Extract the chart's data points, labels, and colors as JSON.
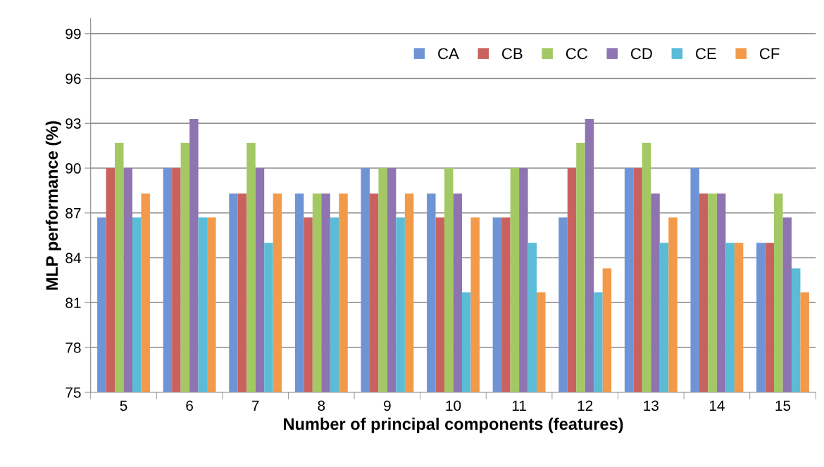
{
  "chart_data": {
    "type": "bar",
    "xlabel": "Number of principal components (features)",
    "ylabel": "MLP performance (%)",
    "categories": [
      "5",
      "6",
      "7",
      "8",
      "9",
      "10",
      "11",
      "12",
      "13",
      "14",
      "15"
    ],
    "series": [
      {
        "name": "CA",
        "color": "#6f94d6",
        "values": [
          86.7,
          90,
          88.3,
          88.3,
          90,
          88.3,
          86.7,
          86.7,
          90,
          90,
          85
        ]
      },
      {
        "name": "CB",
        "color": "#c9625f",
        "values": [
          90,
          90,
          88.3,
          86.7,
          88.3,
          86.7,
          86.7,
          90,
          90,
          88.3,
          85
        ]
      },
      {
        "name": "CC",
        "color": "#a4c964",
        "values": [
          91.7,
          91.7,
          91.7,
          88.3,
          90,
          90,
          90,
          91.7,
          91.7,
          88.3,
          88.3
        ]
      },
      {
        "name": "CD",
        "color": "#8e74b0",
        "values": [
          90,
          93.3,
          90,
          88.3,
          90,
          88.3,
          90,
          93.3,
          88.3,
          88.3,
          86.7
        ]
      },
      {
        "name": "CE",
        "color": "#5bbcd8",
        "values": [
          86.7,
          86.7,
          85,
          86.7,
          86.7,
          81.7,
          85,
          81.7,
          85,
          85,
          83.3
        ]
      },
      {
        "name": "CF",
        "color": "#f29a4a",
        "values": [
          88.3,
          86.7,
          88.3,
          88.3,
          88.3,
          86.7,
          81.7,
          83.3,
          86.7,
          85,
          81.7
        ]
      }
    ],
    "ylim": [
      75,
      100
    ],
    "yticks": [
      75,
      78,
      81,
      84,
      87,
      90,
      93,
      96,
      99
    ],
    "grid": "y",
    "legend": "top right"
  }
}
